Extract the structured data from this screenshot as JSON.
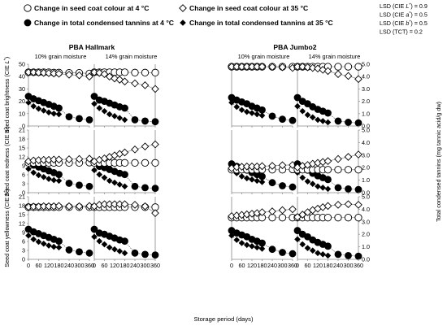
{
  "legend": [
    {
      "key": "colour_4",
      "label": "Change in seed coat colour at 4 °C",
      "marker": "open-circle"
    },
    {
      "key": "colour_35",
      "label": "Change in seed coat colour at 35 °C",
      "marker": "open-diamond"
    },
    {
      "key": "tannin_4",
      "label": "Change in total condensed tannins at 4 °C",
      "marker": "filled-circle"
    },
    {
      "key": "tannin_35",
      "label": "Change in total condensed tannins at 35 °C",
      "marker": "filled-diamond"
    }
  ],
  "lsd": [
    {
      "label": "LSD (CIE ",
      "sym": "L",
      "value": ") = 0.9"
    },
    {
      "label": "LSD (CIE ",
      "sym": "a",
      "value": ") = 0.5"
    },
    {
      "label": "LSD (CIE ",
      "sym": "b",
      "value": ") = 0.5"
    },
    {
      "label": "LSD (TCT) = 0.2",
      "sym": "",
      "value": ""
    }
  ],
  "cultivars": [
    "PBA Hallmark",
    "PBA Jumbo2"
  ],
  "moisture_labels": [
    "10% grain moisture",
    "14% grain moisture",
    "10% grain moisture",
    "14% grain moisture"
  ],
  "left_axis_labels": [
    {
      "pre": "Seed coat brightness (CIE ",
      "sym": "L",
      "post": ")"
    },
    {
      "pre": "Seed coat redness (CIE ",
      "sym": "a",
      "post": ")"
    },
    {
      "pre": "Seed coat yellowness (CIE ",
      "sym": "b",
      "post": ")"
    }
  ],
  "right_axis_label": "Total condensed tannins (mg tannic acid/g dw)",
  "x_axis_label": "Storage period (days)",
  "x_ticks": [
    "0",
    "60",
    "120",
    "180",
    "240",
    "300",
    "360"
  ],
  "left_ticks": [
    "0",
    "3",
    "6",
    "9",
    "12",
    "15",
    "18",
    "21"
  ],
  "left_ticks_top": [
    "0",
    "10",
    "20",
    "30",
    "40",
    "50"
  ],
  "right_ticks": [
    "0.0",
    "1.0",
    "2.0",
    "3.0",
    "4.0",
    "5.0"
  ],
  "colors": {
    "axis": "#888888",
    "marker": "#000000",
    "connector_open": "#8a8a8a",
    "connector_filled": "#555555"
  },
  "chart_data": {
    "type": "scatter",
    "x": [
      0,
      30,
      60,
      90,
      120,
      150,
      180,
      240,
      300,
      360
    ],
    "xlabel": "Storage period (days)",
    "xlim": [
      0,
      360
    ],
    "rows": [
      {
        "name": "L",
        "ylim": [
          0,
          50
        ]
      },
      {
        "name": "a",
        "ylim": [
          0,
          21
        ]
      },
      {
        "name": "b",
        "ylim": [
          0,
          21
        ]
      }
    ],
    "tannin_ylim": [
      0,
      5
    ],
    "panels": [
      {
        "cultivar": "PBA Hallmark",
        "moisture": "10% grain moisture",
        "tannin_4": [
          2.4,
          2.2,
          2.05,
          1.9,
          1.75,
          1.6,
          1.45,
          0.75,
          0.6,
          0.5
        ],
        "tannin_35": [
          1.9,
          1.6,
          1.4,
          1.25,
          1.1,
          1.0,
          0.95,
          null,
          null,
          null
        ],
        "L_4": [
          43.5,
          43.5,
          43.5,
          43.5,
          43.5,
          43.2,
          43.2,
          43.0,
          43.0,
          42.5
        ],
        "L_35": [
          43.5,
          43.5,
          43.2,
          43.0,
          42.8,
          42.5,
          42.3,
          41.5,
          41.0,
          40.0
        ],
        "a_4": [
          10.0,
          10.0,
          10.0,
          10.0,
          10.0,
          10.0,
          10.0,
          10.0,
          10.0,
          10.1
        ],
        "a_35": [
          10.5,
          10.8,
          10.9,
          11.0,
          11.0,
          11.1,
          11.1,
          11.2,
          11.3,
          11.4
        ],
        "b_4": [
          17.5,
          17.5,
          17.5,
          17.5,
          17.5,
          17.5,
          17.5,
          17.5,
          17.5,
          17.5
        ],
        "b_35": [
          17.6,
          17.7,
          17.7,
          17.8,
          17.8,
          17.8,
          17.9,
          17.8,
          17.8,
          17.9
        ]
      },
      {
        "cultivar": "PBA Hallmark",
        "moisture": "14% grain moisture",
        "tannin_4": [
          2.4,
          2.1,
          2.0,
          1.85,
          1.7,
          1.55,
          1.45,
          0.5,
          0.4,
          0.35
        ],
        "tannin_35": [
          1.8,
          1.45,
          1.2,
          0.95,
          0.8,
          0.65,
          0.5,
          null,
          null,
          null
        ],
        "L_4": [
          43.5,
          43.5,
          43.5,
          43.5,
          43.5,
          43.5,
          43.5,
          43.2,
          43.2,
          43.2
        ],
        "L_35": [
          43.5,
          43.0,
          42.0,
          40.0,
          38.5,
          37.5,
          36.0,
          34.5,
          33.0,
          30.0
        ],
        "a_4": [
          10.0,
          10.0,
          10.0,
          10.0,
          10.0,
          10.0,
          10.0,
          10.0,
          10.0,
          10.0
        ],
        "a_35": [
          10.5,
          11.0,
          11.5,
          12.0,
          12.5,
          13.0,
          13.5,
          14.5,
          15.5,
          16.2
        ],
        "b_4": [
          17.5,
          17.5,
          17.5,
          17.5,
          17.5,
          17.5,
          17.5,
          17.5,
          17.5,
          17.5
        ],
        "b_35": [
          17.8,
          18.3,
          18.5,
          18.5,
          18.5,
          18.5,
          18.5,
          18.3,
          17.8,
          15.5
        ]
      },
      {
        "cultivar": "PBA Jumbo2",
        "moisture": "10% grain moisture",
        "tannin_4": [
          2.3,
          2.1,
          1.95,
          1.8,
          1.6,
          1.45,
          1.3,
          0.8,
          0.55,
          0.45
        ],
        "tannin_35": [
          1.9,
          1.55,
          1.3,
          1.15,
          1.05,
          0.95,
          0.85,
          null,
          null,
          null
        ],
        "L_4": [
          48.0,
          48.0,
          48.0,
          48.0,
          48.0,
          48.0,
          48.0,
          48.0,
          48.0,
          48.0
        ],
        "L_35": [
          48.0,
          48.0,
          48.0,
          48.0,
          48.0,
          48.0,
          48.0,
          47.8,
          47.6,
          47.0
        ],
        "a_4": [
          7.7,
          7.7,
          7.7,
          7.7,
          7.7,
          7.7,
          7.7,
          7.7,
          7.7,
          7.8
        ],
        "a_35": [
          8.2,
          8.6,
          8.7,
          8.8,
          8.8,
          8.8,
          8.9,
          9.0,
          9.2,
          9.3
        ],
        "b_4": [
          14.0,
          14.0,
          14.0,
          14.0,
          14.0,
          14.0,
          14.0,
          14.0,
          14.0,
          14.0
        ],
        "b_35": [
          14.5,
          14.7,
          14.9,
          15.1,
          15.3,
          15.5,
          15.8,
          16.1,
          16.5,
          16.8
        ]
      },
      {
        "cultivar": "PBA Jumbo2",
        "moisture": "14% grain moisture",
        "tannin_4": [
          2.3,
          2.0,
          1.8,
          1.55,
          1.35,
          1.2,
          1.05,
          0.4,
          0.3,
          0.25
        ],
        "tannin_35": [
          1.6,
          1.2,
          0.9,
          0.7,
          0.5,
          0.4,
          0.3,
          null,
          null,
          null
        ],
        "L_4": [
          48.0,
          48.0,
          48.0,
          48.0,
          48.0,
          48.0,
          48.0,
          48.0,
          48.0,
          48.0
        ],
        "L_35": [
          48.0,
          48.0,
          47.5,
          47.0,
          46.5,
          45.5,
          44.5,
          42.0,
          40.5,
          38.0
        ],
        "a_4": [
          7.7,
          7.7,
          7.7,
          7.7,
          7.7,
          7.7,
          7.7,
          7.7,
          7.7,
          7.7
        ],
        "a_35": [
          8.5,
          9.0,
          9.3,
          9.7,
          10.0,
          10.3,
          10.6,
          11.3,
          12.0,
          12.8
        ],
        "b_4": [
          14.0,
          14.0,
          14.0,
          14.0,
          14.0,
          14.0,
          14.0,
          14.0,
          14.0,
          14.0
        ],
        "b_35": [
          14.2,
          15.0,
          15.8,
          16.5,
          17.0,
          17.5,
          17.9,
          18.3,
          18.5,
          18.3
        ]
      }
    ]
  }
}
